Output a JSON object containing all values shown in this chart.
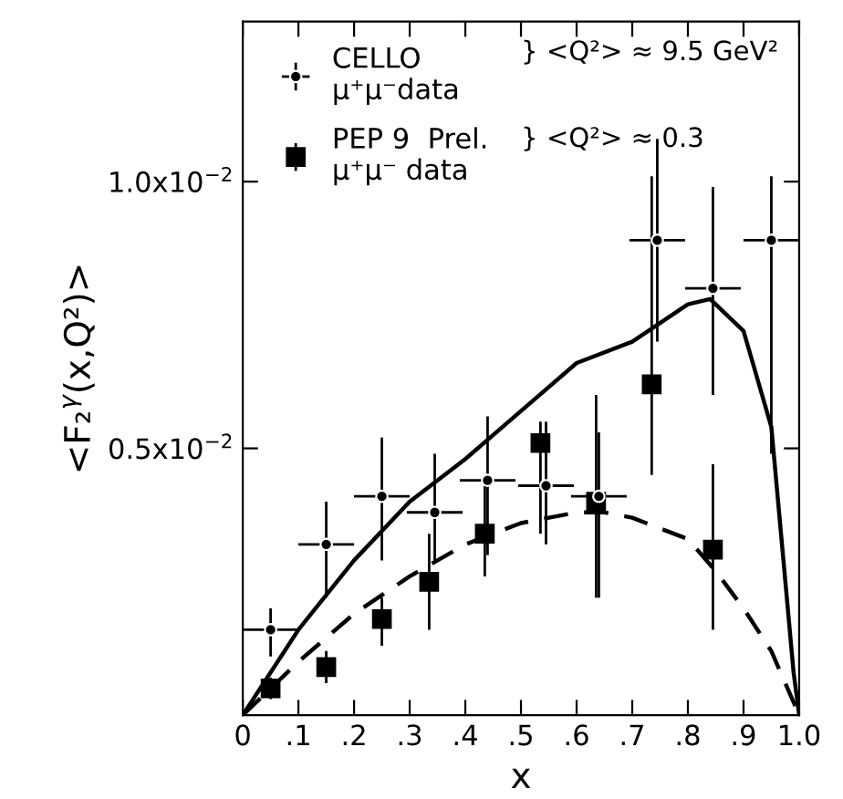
{
  "chart_data": {
    "type": "scatter",
    "xlabel": "x",
    "ylabel": "<F₂$^{γ}$(x,Q²)>",
    "xlim": [
      0,
      1.0
    ],
    "ylim": [
      0,
      0.013
    ],
    "xticks": [
      0,
      {
        "value": 0.1,
        "label": ".1"
      },
      {
        "value": 0.2,
        "label": ".2"
      },
      {
        "value": 0.3,
        "label": ".3"
      },
      {
        "value": 0.4,
        "label": ".4"
      },
      {
        "value": 0.5,
        "label": ".5"
      },
      {
        "value": 0.6,
        "label": ".6"
      },
      {
        "value": 0.7,
        "label": ".7"
      },
      {
        "value": 0.8,
        "label": ".8"
      },
      {
        "value": 0.9,
        "label": ".9"
      },
      {
        "value": 1.0,
        "label": "1.0"
      }
    ],
    "yticks": [
      {
        "value": 0.005,
        "label": "0.5x10$^{−2}$"
      },
      {
        "value": 0.01,
        "label": "1.0x10$^{−2}$"
      }
    ],
    "legend": "top left",
    "grid": false,
    "annotations": [
      "} <Q²> ≈ 9.5 GeV²",
      "} <Q²> ≈ 0.3"
    ],
    "series": [
      {
        "name": "CELLO\nμ⁺μ⁻data",
        "marker": "circle",
        "color": "#000000",
        "x": [
          0.05,
          0.15,
          0.25,
          0.345,
          0.44,
          0.545,
          0.64,
          0.745,
          0.845,
          0.95
        ],
        "values": [
          0.0016,
          0.0032,
          0.0041,
          0.0038,
          0.0044,
          0.0043,
          0.0041,
          0.0089,
          0.008,
          0.0089
        ],
        "errors": [
          [
            0.0011,
            0.002
          ],
          [
            0.0022,
            0.004
          ],
          [
            0.0029,
            0.0052
          ],
          [
            0.0029,
            0.0049
          ],
          [
            0.003,
            0.0056
          ],
          [
            0.0032,
            0.0055
          ],
          [
            0.0022,
            0.0053
          ],
          [
            0.007,
            0.0108
          ],
          [
            0.006,
            0.0099
          ],
          [
            0.0049,
            0.0101
          ]
        ],
        "xerrors": [
          0.05,
          0.05,
          0.05,
          0.05,
          0.05,
          0.05,
          0.05,
          0.05,
          0.05,
          0.05
        ]
      },
      {
        "name": "PEP 9  Prel.\nμ⁺μ⁻ data",
        "marker": "square",
        "color": "#000000",
        "x": [
          0.05,
          0.15,
          0.25,
          0.335,
          0.435,
          0.535,
          0.635,
          0.735,
          0.845
        ],
        "values": [
          0.0005,
          0.0009,
          0.0018,
          0.0025,
          0.0034,
          0.0051,
          0.004,
          0.0062,
          0.0031
        ],
        "errors": [
          [
            0.0003,
            0.0007
          ],
          [
            0.0006,
            0.0012
          ],
          [
            0.0013,
            0.0022
          ],
          [
            0.0016,
            0.0034
          ],
          [
            0.0026,
            0.0043
          ],
          [
            0.0034,
            0.0055
          ],
          [
            0.0022,
            0.006
          ],
          [
            0.0045,
            0.0101
          ],
          [
            0.0016,
            0.0047
          ]
        ]
      },
      {
        "type": "line",
        "line_style": "solid",
        "marker": "none",
        "color": "#000000",
        "x": [
          0,
          0.1,
          0.2,
          0.3,
          0.4,
          0.5,
          0.6,
          0.7,
          0.8,
          0.84,
          0.9,
          0.95,
          0.97,
          0.99,
          1.0
        ],
        "values": [
          0,
          0.0016,
          0.0029,
          0.004,
          0.0048,
          0.0057,
          0.0066,
          0.007,
          0.0077,
          0.0078,
          0.0072,
          0.0054,
          0.0031,
          0.0008,
          0
        ]
      },
      {
        "type": "line",
        "line_style": "dashed",
        "marker": "none",
        "color": "#000000",
        "x": [
          0,
          0.05,
          0.1,
          0.2,
          0.3,
          0.4,
          0.5,
          0.6,
          0.65,
          0.7,
          0.8,
          0.85,
          0.9,
          0.95,
          1.0
        ],
        "values": [
          0,
          0.0005,
          0.001,
          0.0019,
          0.0026,
          0.0032,
          0.0036,
          0.0038,
          0.0038,
          0.0037,
          0.0033,
          0.0027,
          0.002,
          0.0012,
          0
        ]
      }
    ]
  }
}
